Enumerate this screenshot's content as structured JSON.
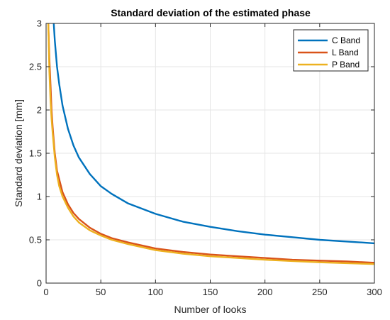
{
  "chart_data": {
    "type": "line",
    "title": "Standard deviation of the estimated phase",
    "xlabel": "Number of looks",
    "ylabel": "Standard deviation [mm]",
    "xlim": [
      0,
      300
    ],
    "ylim": [
      0,
      3
    ],
    "xticks": [
      0,
      50,
      100,
      150,
      200,
      250,
      300
    ],
    "xtick_labels": [
      "0",
      "50",
      "100",
      "150",
      "200",
      "250",
      "300"
    ],
    "yticks": [
      0,
      0.5,
      1,
      1.5,
      2,
      2.5,
      3
    ],
    "ytick_labels": [
      "0",
      "0.5",
      "1",
      "1.5",
      "2",
      "2.5",
      "3"
    ],
    "grid": true,
    "legend_position": "top-right",
    "series": [
      {
        "name": "C Band",
        "color": "#0072BD",
        "x": [
          7,
          8,
          10,
          12,
          15,
          20,
          25,
          30,
          40,
          50,
          60,
          75,
          100,
          125,
          150,
          175,
          200,
          225,
          250,
          275,
          300
        ],
        "y": [
          3.0,
          2.8,
          2.5,
          2.3,
          2.05,
          1.78,
          1.59,
          1.45,
          1.26,
          1.12,
          1.03,
          0.92,
          0.8,
          0.71,
          0.65,
          0.6,
          0.56,
          0.53,
          0.5,
          0.48,
          0.46
        ]
      },
      {
        "name": "L Band",
        "color": "#D95319",
        "x": [
          2,
          3,
          4,
          5,
          6,
          8,
          10,
          12,
          15,
          20,
          25,
          30,
          40,
          50,
          60,
          75,
          100,
          125,
          150,
          175,
          200,
          225,
          250,
          275,
          300
        ],
        "y": [
          3.0,
          2.6,
          2.3,
          2.0,
          1.8,
          1.5,
          1.3,
          1.2,
          1.05,
          0.91,
          0.81,
          0.74,
          0.64,
          0.57,
          0.52,
          0.47,
          0.4,
          0.36,
          0.33,
          0.31,
          0.29,
          0.27,
          0.26,
          0.25,
          0.235
        ]
      },
      {
        "name": "P Band",
        "color": "#EDB120",
        "x": [
          2,
          3,
          4,
          5,
          6,
          8,
          10,
          12,
          15,
          20,
          25,
          30,
          40,
          50,
          60,
          75,
          100,
          125,
          150,
          175,
          200,
          225,
          250,
          275,
          300
        ],
        "y": [
          3.0,
          2.45,
          2.12,
          1.9,
          1.73,
          1.45,
          1.25,
          1.12,
          1.0,
          0.87,
          0.77,
          0.7,
          0.61,
          0.55,
          0.5,
          0.45,
          0.38,
          0.34,
          0.31,
          0.29,
          0.27,
          0.255,
          0.24,
          0.23,
          0.22
        ]
      }
    ]
  }
}
